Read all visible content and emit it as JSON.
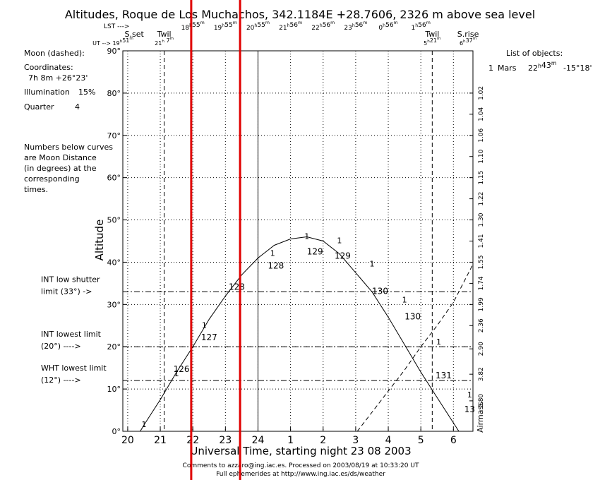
{
  "chart_data": {
    "type": "line",
    "title": "Altitudes, Roque de Los Muchachos, 342.1184E +28.7606, 2326 m above sea level",
    "xlabel": "Universal Time, starting night 23 08 2003",
    "ylabel": "Altitude",
    "right_label": "Airmass",
    "xlim": [
      19.85,
      30.6
    ],
    "ylim": [
      0,
      90
    ],
    "x_ticks": [
      20,
      21,
      22,
      23,
      24,
      25,
      26,
      27,
      28,
      29,
      30
    ],
    "x_tick_labels": [
      "20",
      "21",
      "22",
      "23",
      "24",
      "1",
      "2",
      "3",
      "4",
      "5",
      "6"
    ],
    "y_ticks": [
      0,
      10,
      20,
      30,
      40,
      50,
      60,
      70,
      80,
      90
    ],
    "y_tick_labels": [
      "0°",
      "10°",
      "20°",
      "30°",
      "40°",
      "50°",
      "60°",
      "70°",
      "80°",
      "90°"
    ],
    "airmass_ticks": [
      {
        "alt": 7.2,
        "label": "5.80"
      },
      {
        "alt": 13.5,
        "label": "3.82"
      },
      {
        "alt": 19.5,
        "label": "2.90"
      },
      {
        "alt": 25,
        "label": "2.36"
      },
      {
        "alt": 30,
        "label": "1.99"
      },
      {
        "alt": 35,
        "label": "1.74"
      },
      {
        "alt": 40,
        "label": "1.55"
      },
      {
        "alt": 45,
        "label": "1.41"
      },
      {
        "alt": 50,
        "label": "1.30"
      },
      {
        "alt": 55,
        "label": "1.22"
      },
      {
        "alt": 60,
        "label": "1.15"
      },
      {
        "alt": 65,
        "label": "1.10"
      },
      {
        "alt": 70,
        "label": "1.06"
      },
      {
        "alt": 75,
        "label": "1.04"
      },
      {
        "alt": 80,
        "label": "1.02"
      }
    ],
    "lst_header": "LST --->",
    "lst_ticks": [
      {
        "x": 22,
        "label": "18h55m"
      },
      {
        "x": 23,
        "label": "19h55m"
      },
      {
        "x": 24,
        "label": "20h55m"
      },
      {
        "x": 25,
        "label": "21h56m"
      },
      {
        "x": 26,
        "label": "22h56m"
      },
      {
        "x": 27,
        "label": "23h56m"
      },
      {
        "x": 28,
        "label": "0h56m"
      },
      {
        "x": 29,
        "label": "1h56m"
      }
    ],
    "ut_header": "UT --> 19h51m",
    "events": [
      {
        "x": 21.12,
        "name": "Twil",
        "time": "21h 7m",
        "style": "dashed"
      },
      {
        "x": 29.35,
        "name": "Twil",
        "time": "5h21m",
        "style": "dashed"
      },
      {
        "x": 24.0,
        "name": "",
        "time": "",
        "style": "solid"
      }
    ],
    "sunset_label": "S.set",
    "sunrise_label": "S.rise",
    "sunrise_time": "6h37m",
    "limits": [
      {
        "alt": 33,
        "label_lines": [
          "INT low shutter",
          "limit (33°) ->"
        ]
      },
      {
        "alt": 20,
        "label_lines": [
          "INT lowest limit",
          "(20°) ---->"
        ]
      },
      {
        "alt": 12,
        "label_lines": [
          "WHT lowest limit",
          "(12°) ---->"
        ]
      }
    ],
    "series": [
      {
        "name": "1 Mars",
        "x": [
          20.0,
          20.5,
          21.0,
          21.5,
          22.0,
          22.5,
          23.0,
          23.5,
          24.0,
          24.5,
          25.0,
          25.5,
          26.0,
          26.5,
          27.0,
          27.5,
          28.0,
          28.5,
          29.0,
          29.5,
          30.0,
          30.5
        ],
        "y": [
          -5,
          1.5,
          7.5,
          14,
          20,
          26.5,
          32,
          37,
          41,
          44,
          45.5,
          46,
          45,
          42,
          37.5,
          33,
          27,
          20.5,
          14,
          8,
          2,
          -4
        ]
      },
      {
        "name": "Moon",
        "style": "dashed",
        "x": [
          27.05,
          27.5,
          28.0,
          28.5,
          29.0,
          29.5,
          30.0,
          30.6
        ],
        "y": [
          0,
          4.5,
          9.5,
          14.5,
          20,
          25,
          30.5,
          39.5
        ]
      }
    ],
    "object_markers": [
      {
        "x": 20.5,
        "y": 1
      },
      {
        "x": 21.5,
        "y": 13
      },
      {
        "x": 22.35,
        "y": 24.5
      },
      {
        "x": 24.45,
        "y": 41.5
      },
      {
        "x": 25.5,
        "y": 45.5
      },
      {
        "x": 26.5,
        "y": 44.5
      },
      {
        "x": 27.5,
        "y": 39
      },
      {
        "x": 28.5,
        "y": 30.5
      },
      {
        "x": 29.55,
        "y": 20.5
      },
      {
        "x": 30.5,
        "y": 8
      }
    ],
    "moon_distances": [
      {
        "x": 21.65,
        "y": 14,
        "label": "126"
      },
      {
        "x": 22.5,
        "y": 21.5,
        "label": "127"
      },
      {
        "x": 23.35,
        "y": 33.5,
        "label": "128"
      },
      {
        "x": 24.55,
        "y": 38.5,
        "label": "128"
      },
      {
        "x": 25.75,
        "y": 41.8,
        "label": "129"
      },
      {
        "x": 26.6,
        "y": 40.8,
        "label": "129"
      },
      {
        "x": 27.75,
        "y": 32.5,
        "label": "130"
      },
      {
        "x": 28.75,
        "y": 26.5,
        "label": "130"
      },
      {
        "x": 29.7,
        "y": 12.5,
        "label": "131"
      },
      {
        "x": 30.5,
        "y": 4.5,
        "label": "13"
      }
    ],
    "red_markers": [
      21.95,
      23.45
    ]
  },
  "info": {
    "moon_label": "Moon (dashed):",
    "coordinates_label": "Coordinates:",
    "coordinates_value": "7h 8m  +26°23'",
    "illumination_label": "Illumination",
    "illumination_value": "15%",
    "quarter_label": "Quarter",
    "quarter_value": "4",
    "note_lines": [
      "Numbers below curves",
      "are Moon Distance",
      "(in degrees) at the",
      "corresponding",
      "times."
    ]
  },
  "objects": {
    "header": "List of objects:",
    "items": [
      {
        "index": "1",
        "name": "Mars",
        "ra": "22h43m",
        "dec": "-15°18'"
      }
    ]
  },
  "footer": {
    "line1": "Comments to azzaro@ing.iac.es. Processed on 2003/08/19 at 10:33:20 UT",
    "line2": "Full ephemerides at http://www.ing.iac.es/ds/weather"
  },
  "colors": {
    "curve": "#000000",
    "markers": "#cc00cc",
    "moon_distance": "#0000cc",
    "red_marker": "#e00000",
    "grid": "#000000"
  }
}
